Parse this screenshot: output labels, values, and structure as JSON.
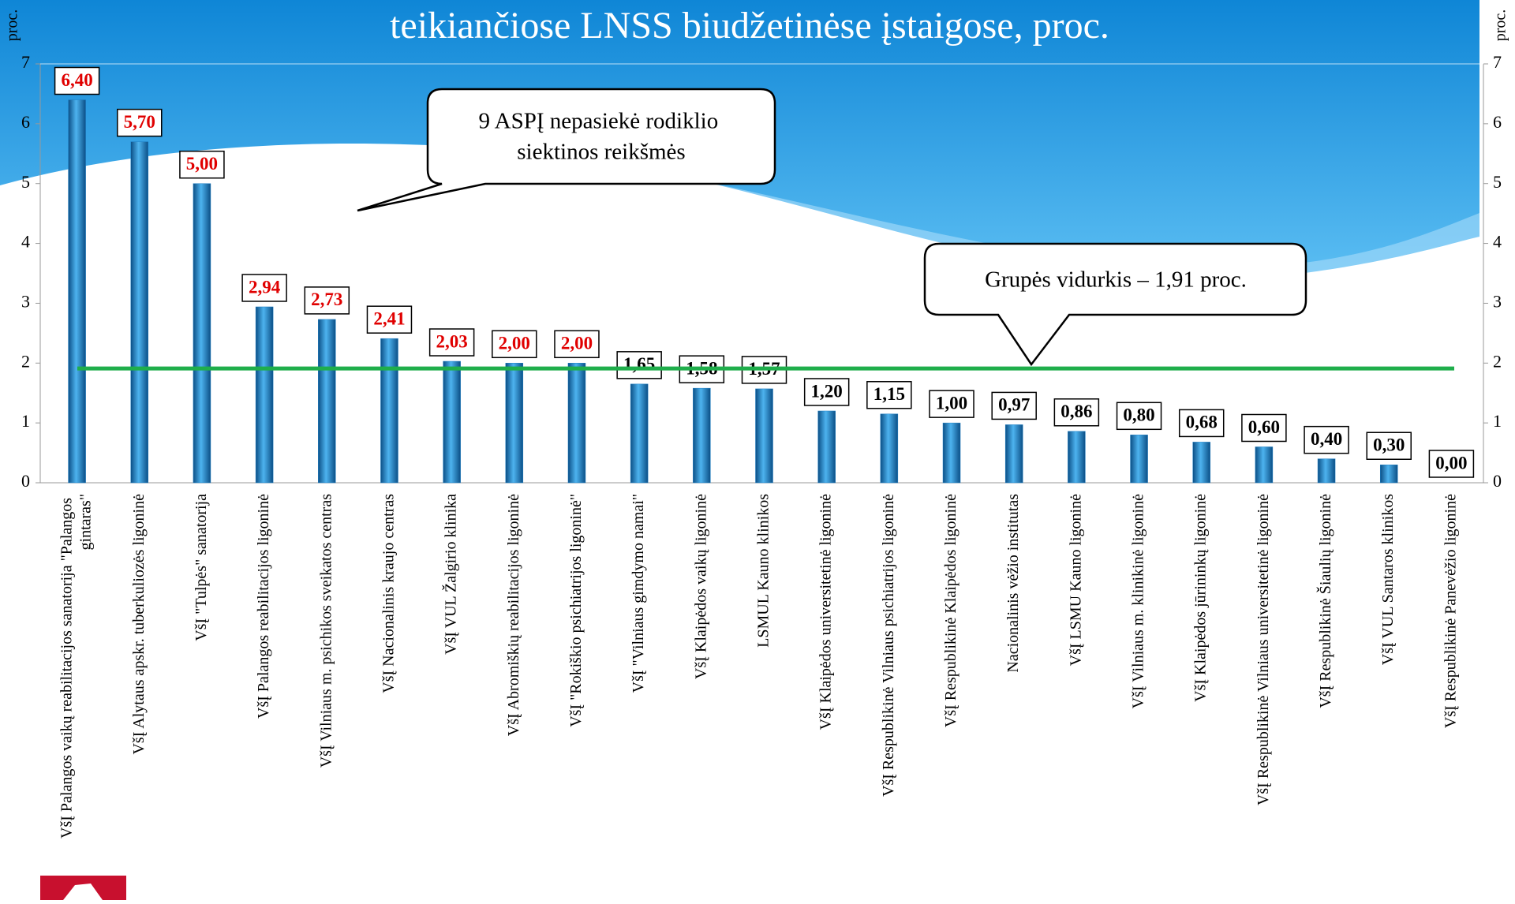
{
  "chart_data": {
    "type": "bar",
    "title": "teikiančiose LNSS biudžetinėse įstaigose, proc.",
    "y_label": "proc.",
    "y2_label": "proc.",
    "categories": [
      "VšĮ Palangos vaikų reabilitacijos sanatorija \"Palangos gintaras\"",
      "VšĮ Alytaus apskr. tuberkuliozės ligoninė",
      "VšĮ \"Tulpės\" sanatorija",
      "VšĮ Palangos reabilitacijos ligoninė",
      "VšĮ Vilniaus m. psichikos sveikatos centras",
      "VšĮ Nacionalinis kraujo centras",
      "VšĮ VUL Žalgirio klinika",
      "VšĮ Abromiškių reabilitacijos ligoninė",
      "VšĮ \"Rokiškio psichiatrijos ligoninė\"",
      "VšĮ \"Vilniaus gimdymo namai\"",
      "VšĮ Klaipėdos vaikų ligoninė",
      "LSMUL Kauno klinikos",
      "VšĮ Klaipėdos universitetinė ligoninė",
      "VšĮ Respublikinė Vilniaus psichiatrijos ligoninė",
      "VšĮ Respublikinė Klaipėdos ligoninė",
      "Nacionalinis vėžio institutas",
      "VšĮ LSMU Kauno ligoninė",
      "VšĮ Vilniaus m. klinikinė ligoninė",
      "VšĮ Klaipėdos jūrininkų ligoninė",
      "VšĮ Respublikinė Vilniaus universitetinė ligoninė",
      "VšĮ Respublikinė Šiaulių ligoninė",
      "VšĮ VUL Santaros klinikos",
      "VšĮ Respublikinė Panevėžio ligoninė"
    ],
    "values": [
      6.4,
      5.7,
      5.0,
      2.94,
      2.73,
      2.41,
      2.03,
      2.0,
      2.0,
      1.65,
      1.58,
      1.57,
      1.2,
      1.15,
      1.0,
      0.97,
      0.86,
      0.8,
      0.68,
      0.6,
      0.4,
      0.3,
      0.0
    ],
    "value_labels": [
      "6,40",
      "5,70",
      "5,00",
      "2,94",
      "2,73",
      "2,41",
      "2,03",
      "2,00",
      "2,00",
      "1,65",
      "1,58",
      "1,57",
      "1,20",
      "1,15",
      "1,00",
      "0,97",
      "0,86",
      "0,80",
      "0,68",
      "0,60",
      "0,40",
      "0,30",
      "0,00"
    ],
    "value_label_colors": [
      "#e00000",
      "#e00000",
      "#e00000",
      "#e00000",
      "#e00000",
      "#e00000",
      "#e00000",
      "#e00000",
      "#e00000",
      "#000000",
      "#000000",
      "#000000",
      "#000000",
      "#000000",
      "#000000",
      "#000000",
      "#000000",
      "#000000",
      "#000000",
      "#000000",
      "#000000",
      "#000000",
      "#000000"
    ],
    "color": "#1f7fc4",
    "ylim": [
      0,
      7
    ],
    "yticks": [
      0,
      1,
      2,
      3,
      4,
      5,
      6,
      7
    ],
    "y2lim": [
      0,
      7
    ],
    "y2ticks": [
      0,
      1,
      2,
      3,
      4,
      5,
      6,
      7
    ],
    "reference_line": {
      "value": 1.91,
      "color": "#1fae4b"
    },
    "annotations": [
      "9 ASPĮ nepasiekė rodiklio siektinos reikšmės",
      "Grupės vidurkis – 1,91 proc."
    ]
  }
}
